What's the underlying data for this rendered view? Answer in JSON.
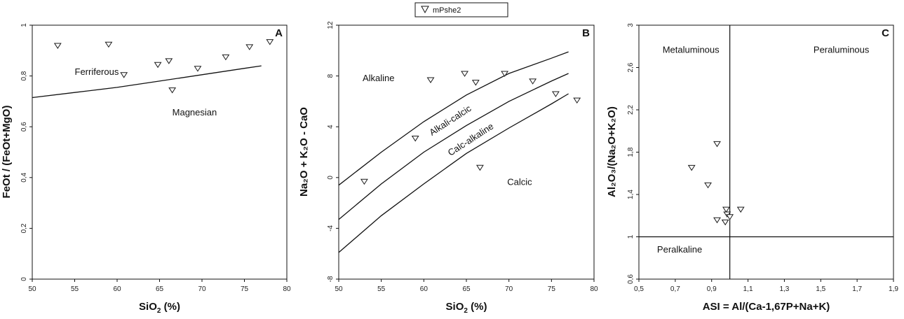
{
  "legend": {
    "label": "mPshe2"
  },
  "marker": {
    "stroke": "#1a1a1a",
    "fill": "#ffffff"
  },
  "chart_data": [
    {
      "id": "A",
      "type": "scatter",
      "panel_label": "A",
      "xlabel_main": "SiO",
      "xlabel_sub": "2",
      "xlabel_tail": " (%)",
      "ylabel": "FeOt / (FeOt+MgO)",
      "xlim": [
        50,
        80
      ],
      "ylim": [
        0,
        1
      ],
      "x_ticks": [
        {
          "v": 50,
          "t": "50"
        },
        {
          "v": 55,
          "t": "55"
        },
        {
          "v": 60,
          "t": "60"
        },
        {
          "v": 65,
          "t": "65"
        },
        {
          "v": 70,
          "t": "70"
        },
        {
          "v": 75,
          "t": "75"
        },
        {
          "v": 80,
          "t": "80"
        }
      ],
      "y_ticks": [
        {
          "v": 0,
          "t": "0"
        },
        {
          "v": 0.2,
          "t": "0,2"
        },
        {
          "v": 0.4,
          "t": "0,4"
        },
        {
          "v": 0.6,
          "t": "0,6"
        },
        {
          "v": 0.8,
          "t": "0,8"
        },
        {
          "v": 1,
          "t": "1"
        }
      ],
      "points": [
        {
          "x": 53.0,
          "y": 0.92
        },
        {
          "x": 59.0,
          "y": 0.925
        },
        {
          "x": 60.8,
          "y": 0.805
        },
        {
          "x": 64.8,
          "y": 0.845
        },
        {
          "x": 66.1,
          "y": 0.86
        },
        {
          "x": 66.5,
          "y": 0.745
        },
        {
          "x": 69.5,
          "y": 0.83
        },
        {
          "x": 72.8,
          "y": 0.875
        },
        {
          "x": 75.6,
          "y": 0.915
        },
        {
          "x": 78.0,
          "y": 0.935
        }
      ],
      "boundaries": [
        {
          "points": [
            [
              50,
              0.715
            ],
            [
              55,
              0.735
            ],
            [
              60,
              0.755
            ],
            [
              65,
              0.78
            ],
            [
              70,
              0.805
            ],
            [
              75,
              0.83
            ],
            [
              77,
              0.84
            ]
          ]
        }
      ],
      "regions": [
        {
          "text": "Ferriferous",
          "x": 55.0,
          "y": 0.805
        },
        {
          "text": "Magnesian",
          "x": 66.5,
          "y": 0.645
        }
      ]
    },
    {
      "id": "B",
      "type": "scatter",
      "panel_label": "B",
      "xlabel_main": "SiO",
      "xlabel_sub": "2",
      "xlabel_tail": " (%)",
      "ylabel": "Na₂O + K₂O - CaO",
      "xlim": [
        50,
        80
      ],
      "ylim": [
        -8,
        12
      ],
      "x_ticks": [
        {
          "v": 50,
          "t": "50"
        },
        {
          "v": 55,
          "t": "55"
        },
        {
          "v": 60,
          "t": "60"
        },
        {
          "v": 65,
          "t": "65"
        },
        {
          "v": 70,
          "t": "70"
        },
        {
          "v": 75,
          "t": "75"
        },
        {
          "v": 80,
          "t": "80"
        }
      ],
      "y_ticks": [
        {
          "v": -8,
          "t": "-8"
        },
        {
          "v": -4,
          "t": "-4"
        },
        {
          "v": 0,
          "t": "0"
        },
        {
          "v": 4,
          "t": "4"
        },
        {
          "v": 8,
          "t": "8"
        },
        {
          "v": 12,
          "t": "12"
        }
      ],
      "points": [
        {
          "x": 53.0,
          "y": -0.3
        },
        {
          "x": 59.0,
          "y": 3.1
        },
        {
          "x": 60.8,
          "y": 7.7
        },
        {
          "x": 64.8,
          "y": 8.2
        },
        {
          "x": 66.1,
          "y": 7.5
        },
        {
          "x": 66.6,
          "y": 0.8
        },
        {
          "x": 69.5,
          "y": 8.2
        },
        {
          "x": 72.8,
          "y": 7.6
        },
        {
          "x": 75.5,
          "y": 6.6
        },
        {
          "x": 78.0,
          "y": 6.1
        }
      ],
      "boundaries": [
        {
          "points": [
            [
              50,
              -0.6
            ],
            [
              55,
              2.0
            ],
            [
              60,
              4.4
            ],
            [
              65,
              6.5
            ],
            [
              70,
              8.2
            ],
            [
              75,
              9.4
            ],
            [
              77,
              9.9
            ]
          ]
        },
        {
          "points": [
            [
              50,
              -3.3
            ],
            [
              55,
              -0.5
            ],
            [
              60,
              2.0
            ],
            [
              65,
              4.1
            ],
            [
              70,
              6.0
            ],
            [
              75,
              7.6
            ],
            [
              77,
              8.2
            ]
          ]
        },
        {
          "points": [
            [
              50,
              -5.9
            ],
            [
              55,
              -3.0
            ],
            [
              60,
              -0.5
            ],
            [
              65,
              1.9
            ],
            [
              70,
              3.9
            ],
            [
              75,
              5.8
            ],
            [
              77,
              6.6
            ]
          ]
        }
      ],
      "regions": [
        {
          "text": "Alkaline",
          "x": 52.8,
          "y": 7.6
        },
        {
          "text": "Calcic",
          "x": 69.8,
          "y": -0.6
        }
      ],
      "curve_labels": [
        {
          "text": "Alkali-calcic",
          "x": 63.3,
          "y": 4.3,
          "angle": -33
        },
        {
          "text": "Calc-alkaline",
          "x": 65.7,
          "y": 2.8,
          "angle": -33
        }
      ]
    },
    {
      "id": "C",
      "type": "scatter",
      "panel_label": "C",
      "xlabel_main": "ASI = Al/(Ca-1,67P+Na+K)",
      "ylabel": "Al₂O₃/(Na₂O+K₂O)",
      "xlim": [
        0.5,
        1.9
      ],
      "ylim": [
        0.6,
        3
      ],
      "x_ticks": [
        {
          "v": 0.5,
          "t": "0,5"
        },
        {
          "v": 0.7,
          "t": "0,7"
        },
        {
          "v": 0.9,
          "t": "0,9"
        },
        {
          "v": 1.1,
          "t": "1,1"
        },
        {
          "v": 1.3,
          "t": "1,3"
        },
        {
          "v": 1.5,
          "t": "1,5"
        },
        {
          "v": 1.7,
          "t": "1,7"
        },
        {
          "v": 1.9,
          "t": "1,9"
        }
      ],
      "y_ticks": [
        {
          "v": 0.6,
          "t": "0,6"
        },
        {
          "v": 1,
          "t": "1"
        },
        {
          "v": 1.4,
          "t": "1,4"
        },
        {
          "v": 1.8,
          "t": "1,8"
        },
        {
          "v": 2.2,
          "t": "2,2"
        },
        {
          "v": 2.6,
          "t": "2,6"
        },
        {
          "v": 3,
          "t": "3"
        }
      ],
      "points": [
        {
          "x": 0.79,
          "y": 1.655
        },
        {
          "x": 0.88,
          "y": 1.49
        },
        {
          "x": 0.93,
          "y": 1.88
        },
        {
          "x": 0.93,
          "y": 1.16
        },
        {
          "x": 0.975,
          "y": 1.14
        },
        {
          "x": 0.98,
          "y": 1.26
        },
        {
          "x": 0.985,
          "y": 1.215
        },
        {
          "x": 1.0,
          "y": 1.19
        },
        {
          "x": 1.06,
          "y": 1.26
        }
      ],
      "ref_lines": [
        {
          "orient": "vertical",
          "value": 1.0
        },
        {
          "orient": "horizontal",
          "value": 1.0
        }
      ],
      "regions": [
        {
          "text": "Metaluminous",
          "x": 0.63,
          "y": 2.74
        },
        {
          "text": "Peraluminous",
          "x": 1.46,
          "y": 2.74
        },
        {
          "text": "Peralkaline",
          "x": 0.6,
          "y": 0.85
        }
      ]
    }
  ]
}
